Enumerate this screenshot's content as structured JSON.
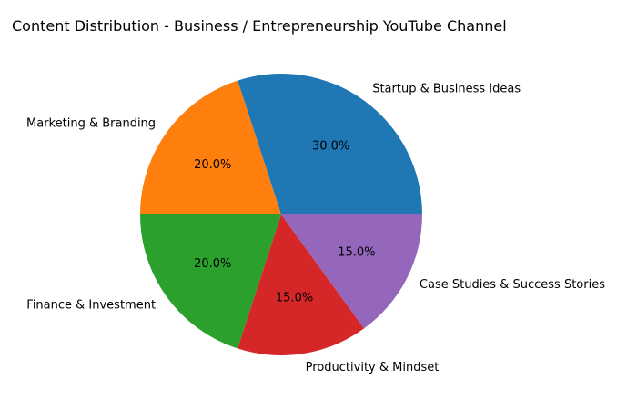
{
  "chart_data": {
    "type": "pie",
    "title": "Content Distribution - Business / Entrepreneurship YouTube Channel",
    "categories": [
      "Startup & Business Ideas",
      "Marketing & Branding",
      "Finance & Investment",
      "Productivity & Mindset",
      "Case Studies & Success Stories"
    ],
    "values": [
      30,
      20,
      20,
      15,
      15
    ],
    "percent_labels": [
      "30.0%",
      "20.0%",
      "20.0%",
      "15.0%",
      "15.0%"
    ],
    "colors": [
      "#1f77b4",
      "#ff7f0e",
      "#2ca02c",
      "#d62728",
      "#9467bd"
    ],
    "start_angle": 0,
    "direction": "counterclockwise"
  }
}
